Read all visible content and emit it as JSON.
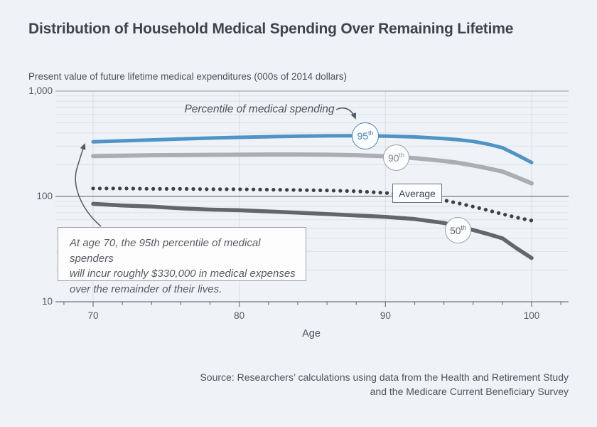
{
  "header": {
    "title": "Distribution of Household Medical Spending Over Remaining Lifetime"
  },
  "chart": {
    "y_axis_title": "Present value of future lifetime medical expenditures (000s of 2014 dollars)",
    "x_axis_title": "Age",
    "pointer_label": "Percentile of medical spending",
    "average_label": "Average",
    "badges": {
      "p95": {
        "num": "95",
        "sup": "th"
      },
      "p90": {
        "num": "90",
        "sup": "th"
      },
      "p50": {
        "num": "50",
        "sup": "th"
      }
    },
    "callout": {
      "line1": "At age 70, the 95th percentile of medical spenders",
      "line2": "will incur roughly $330,000 in medical expenses",
      "line3": "over the remainder of their lives."
    }
  },
  "source": {
    "line1": "Source: Researchers’ calculations using data from the Health and Retirement Study",
    "line2": "and the Medicare Current Beneficiary Survey"
  },
  "colors": {
    "background": "#eff3f7",
    "p95_line": "#4e94c6",
    "p90_line": "#abafb2",
    "p50_line": "#63676b",
    "average_dots": "#3c4145",
    "grid_minor": "#dce1e5",
    "grid_vertical": "#d9dee3",
    "grid_1000": "#8e9499",
    "grid_100": "#585e63",
    "axis": "#6e747a",
    "arrow": "#53585d"
  },
  "chart_data": {
    "type": "line",
    "title": "Distribution of Household Medical Spending Over Remaining Lifetime",
    "xlabel": "Age",
    "ylabel": "Present value of future lifetime medical expenditures (000s of 2014 dollars)",
    "y_scale": "log",
    "ylim": [
      10,
      1000
    ],
    "x_ticks": [
      70,
      80,
      90,
      100
    ],
    "x_minor_tick_step": 2,
    "x_minor_tick_range": [
      68,
      102
    ],
    "y_ticks": [
      {
        "value": 1000,
        "label": "1,000"
      },
      {
        "value": 100,
        "label": "100"
      },
      {
        "value": 10,
        "label": "10"
      }
    ],
    "grid": true,
    "series": [
      {
        "id": "p95",
        "name": "95th percentile",
        "style": "solid",
        "color": "#4e94c6",
        "ages": [
          70,
          72,
          74,
          76,
          78,
          80,
          82,
          84,
          86,
          88,
          90,
          92,
          94,
          95,
          96,
          97,
          98,
          99,
          100
        ],
        "values": [
          330,
          337,
          344,
          351,
          358,
          364,
          369,
          373,
          376,
          377,
          374,
          367,
          354,
          345,
          333,
          314,
          290,
          248,
          210
        ]
      },
      {
        "id": "p90",
        "name": "90th percentile",
        "style": "solid",
        "color": "#abafb2",
        "ages": [
          70,
          72,
          74,
          76,
          78,
          80,
          82,
          84,
          86,
          88,
          90,
          92,
          94,
          95,
          96,
          97,
          98,
          99,
          100
        ],
        "values": [
          242,
          244,
          246,
          247,
          248,
          249,
          250,
          250,
          249,
          246,
          241,
          231,
          217,
          208,
          197,
          185,
          172,
          152,
          133
        ]
      },
      {
        "id": "average",
        "name": "Average",
        "style": "dotted",
        "color": "#3c4145",
        "ages": [
          70,
          72,
          74,
          76,
          78,
          80,
          82,
          84,
          86,
          88,
          90,
          91,
          92,
          93,
          94,
          95,
          96,
          97,
          98,
          99,
          100
        ],
        "values": [
          119,
          119,
          118,
          118,
          117,
          117,
          116,
          115,
          114,
          112,
          108,
          105,
          101,
          97,
          92,
          86,
          80,
          74,
          68,
          63,
          59
        ]
      },
      {
        "id": "p50",
        "name": "50th percentile",
        "style": "solid",
        "color": "#63676b",
        "ages": [
          70,
          72,
          74,
          76,
          78,
          80,
          82,
          84,
          86,
          88,
          90,
          92,
          94,
          95,
          96,
          97,
          98,
          99,
          100
        ],
        "values": [
          85,
          82,
          80,
          77,
          75,
          74,
          72,
          70,
          68,
          66,
          64,
          61,
          56,
          52,
          48,
          44,
          40,
          32,
          26
        ]
      }
    ]
  }
}
